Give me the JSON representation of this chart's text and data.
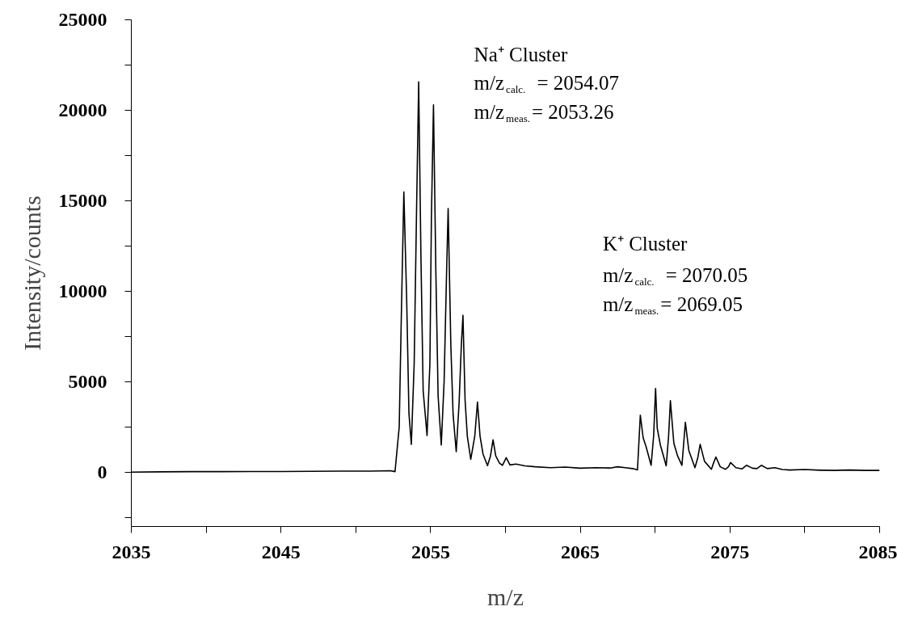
{
  "chart_data": {
    "type": "line",
    "xlabel": "m/z",
    "ylabel": "Intensity/counts",
    "color": "#000000",
    "x": [
      2035,
      2037,
      2039,
      2041,
      2043,
      2045,
      2047,
      2049,
      2051,
      2052.3,
      2052.62,
      2052.9,
      2053.05,
      2053.21,
      2053.4,
      2053.55,
      2053.71,
      2053.9,
      2054.05,
      2054.2,
      2054.35,
      2054.5,
      2054.76,
      2054.95,
      2055.05,
      2055.19,
      2055.35,
      2055.5,
      2055.71,
      2055.9,
      2056.05,
      2056.17,
      2056.35,
      2056.5,
      2056.71,
      2056.9,
      2057.05,
      2057.16,
      2057.3,
      2057.45,
      2057.68,
      2057.95,
      2058.13,
      2058.3,
      2058.5,
      2058.8,
      2059.0,
      2059.17,
      2059.35,
      2059.6,
      2059.8,
      2060.05,
      2060.3,
      2060.7,
      2061.3,
      2062,
      2063,
      2064,
      2065,
      2066,
      2067,
      2067.5,
      2068,
      2068.5,
      2068.82,
      2069.01,
      2069.2,
      2069.4,
      2069.73,
      2069.9,
      2070.03,
      2070.14,
      2070.35,
      2070.74,
      2070.9,
      2071.02,
      2071.25,
      2071.5,
      2071.79,
      2071.9,
      2072.02,
      2072.25,
      2072.66,
      2072.85,
      2073.01,
      2073.3,
      2073.76,
      2073.9,
      2074.06,
      2074.35,
      2074.7,
      2074.9,
      2075.04,
      2075.4,
      2075.8,
      2076.1,
      2076.5,
      2076.8,
      2077.1,
      2077.5,
      2078.0,
      2078.5,
      2079,
      2080,
      2081,
      2082,
      2083,
      2084,
      2085
    ],
    "values": [
      0,
      20,
      30,
      30,
      40,
      40,
      50,
      60,
      60,
      80,
      30,
      2500,
      9000,
      15490,
      9500,
      3260,
      1530,
      6000,
      14000,
      21570,
      12000,
      4500,
      2030,
      6000,
      14000,
      20300,
      11000,
      4200,
      1500,
      5000,
      10500,
      14570,
      7000,
      3200,
      1130,
      3800,
      7000,
      8670,
      4000,
      2000,
      710,
      2000,
      3880,
      2000,
      1000,
      360,
      900,
      1790,
      900,
      500,
      380,
      800,
      400,
      450,
      350,
      300,
      250,
      280,
      220,
      250,
      230,
      300,
      250,
      200,
      130,
      3150,
      1900,
      1400,
      380,
      2000,
      4620,
      2430,
      1500,
      350,
      2000,
      3950,
      1600,
      900,
      380,
      1500,
      2760,
      1200,
      250,
      800,
      1540,
      600,
      160,
      500,
      840,
      300,
      160,
      300,
      530,
      250,
      180,
      380,
      220,
      200,
      380,
      200,
      250,
      150,
      120,
      150,
      110,
      100,
      120,
      100,
      100
    ],
    "xlim": [
      2035,
      2085
    ],
    "ylim": [
      -3000,
      25000
    ],
    "xticks": [
      2035,
      {
        "value": 2040,
        "label": null
      },
      2045,
      {
        "value": 2050,
        "label": null
      },
      2055,
      {
        "value": 2060,
        "label": null
      },
      2065,
      {
        "value": 2070,
        "label": null
      },
      2075,
      {
        "value": 2080,
        "label": null
      },
      2085
    ],
    "yticks": [
      {
        "value": -2500,
        "label": null
      },
      0,
      {
        "value": 2500,
        "label": null
      },
      5000,
      {
        "value": 7500,
        "label": null
      },
      10000,
      {
        "value": 12500,
        "label": null
      },
      15000,
      {
        "value": 17500,
        "label": null
      },
      20000,
      {
        "value": 22500,
        "label": null
      },
      25000
    ],
    "grid": false,
    "annotations": [
      "Na⁺ Cluster",
      "m/z$_{calc.}$ = 2054.07",
      "m/z$_{meas.}$= 2053.26",
      "K⁺ Cluster",
      "m/z$_{calc.}$ = 2070.05",
      "m/z$_{meas.}$= 2069.05"
    ]
  }
}
